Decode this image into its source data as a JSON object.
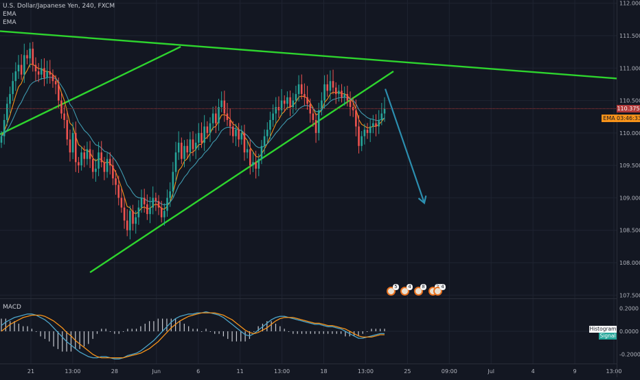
{
  "header": {
    "symbol_line": "U.S. Dollar/Japanese Yen, 240, FXCM",
    "indicators": [
      "EMA",
      "EMA"
    ]
  },
  "macd_panel": {
    "label": "MACD"
  },
  "colors": {
    "background": "#131722",
    "up_candle": "#26a69a",
    "down_candle": "#ef5350",
    "ema_fast": "#f7931a",
    "ema_slow": "#3f9bb0",
    "trendline": "#2ed52e",
    "arrow": "#2c8fb0",
    "macd_line": "#4da5c9",
    "signal_line": "#f7931a",
    "price_line": "#b23b3b"
  },
  "price_axis": {
    "labels": [
      "112.000",
      "111.500",
      "111.000",
      "110.500",
      "110.000",
      "109.500",
      "109.000",
      "108.500",
      "108.000",
      "107.500"
    ],
    "current_price": "110.375",
    "ema_tag_label": "EMA",
    "ema_tag_value": "03:46:33"
  },
  "macd_axis": {
    "labels": [
      "0.2000",
      "0.0000",
      "-0.2000"
    ],
    "histogram_tag": "Histogram",
    "signal_tag": "Signal"
  },
  "time_axis": {
    "labels": [
      "21",
      "13:00",
      "28",
      "Jun",
      "6",
      "11",
      "13:00",
      "18",
      "13:00",
      "25",
      "09:00",
      "Jul",
      "4",
      "9",
      "13:00"
    ]
  },
  "events": [
    "5",
    "4",
    "8",
    "23",
    "4"
  ],
  "chart_data": {
    "type": "candlestick",
    "title": "U.S. Dollar/Japanese Yen, 240, FXCM",
    "ylim": [
      107.45,
      112.05
    ],
    "macd_ylim": [
      -0.28,
      0.28
    ],
    "last_price": 110.375,
    "trendlines": [
      {
        "name": "upper",
        "x1": 0,
        "y1": 111.57,
        "x2": 1,
        "y2": 110.84
      },
      {
        "name": "channel-top",
        "x1": 0,
        "y1": 109.98,
        "x2": 0.293,
        "y2": 111.33
      },
      {
        "name": "channel-bottom",
        "x1": 0.146,
        "y1": 107.85,
        "x2": 0.638,
        "y2": 110.95
      }
    ],
    "projection": {
      "from": [
        0.602,
        110.68
      ],
      "to": [
        0.663,
        108.92
      ]
    },
    "closes": [
      109.95,
      110.2,
      110.45,
      110.6,
      110.8,
      110.95,
      111.05,
      110.9,
      111.2,
      111.15,
      111.3,
      111.05,
      110.95,
      110.9,
      111.0,
      110.85,
      110.95,
      110.9,
      110.8,
      110.75,
      110.5,
      110.3,
      110.2,
      109.9,
      109.7,
      110.0,
      109.55,
      109.5,
      109.7,
      109.6,
      109.75,
      109.6,
      109.4,
      109.45,
      109.7,
      109.55,
      109.4,
      109.6,
      109.5,
      109.3,
      109.2,
      109.0,
      108.85,
      108.65,
      108.5,
      108.8,
      108.6,
      108.7,
      108.85,
      109.0,
      108.9,
      108.75,
      108.85,
      109.0,
      108.95,
      108.85,
      108.7,
      108.8,
      109.0,
      109.1,
      109.4,
      109.7,
      109.85,
      109.6,
      109.8,
      109.7,
      109.9,
      109.75,
      109.85,
      110.0,
      109.85,
      110.1,
      110.0,
      110.15,
      110.3,
      110.15,
      110.4,
      110.5,
      110.3,
      110.2,
      110.1,
      109.95,
      110.05,
      109.9,
      110.0,
      109.7,
      109.75,
      109.5,
      109.55,
      109.45,
      109.6,
      109.8,
      109.95,
      110.05,
      110.2,
      110.3,
      110.4,
      110.35,
      110.5,
      110.45,
      110.55,
      110.4,
      110.5,
      110.6,
      110.75,
      110.6,
      110.55,
      110.45,
      110.3,
      110.2,
      110.0,
      110.35,
      110.5,
      110.75,
      110.65,
      110.8,
      110.7,
      110.6,
      110.65,
      110.55,
      110.6,
      110.5,
      110.4,
      110.35,
      110.1,
      109.8,
      109.95,
      110.05,
      110.0,
      110.1,
      110.15,
      110.1,
      110.2,
      110.3,
      110.375
    ],
    "macd": [
      0.05,
      0.08,
      0.1,
      0.12,
      0.13,
      0.14,
      0.15,
      0.15,
      0.14,
      0.12,
      0.1,
      0.07,
      0.03,
      -0.01,
      -0.05,
      -0.09,
      -0.12,
      -0.15,
      -0.18,
      -0.2,
      -0.22,
      -0.23,
      -0.23,
      -0.22,
      -0.22,
      -0.23,
      -0.24,
      -0.24,
      -0.23,
      -0.21,
      -0.2,
      -0.19,
      -0.17,
      -0.14,
      -0.11,
      -0.08,
      -0.04,
      0.0,
      0.04,
      0.08,
      0.11,
      0.13,
      0.14,
      0.15,
      0.15,
      0.16,
      0.16,
      0.17,
      0.16,
      0.15,
      0.14,
      0.12,
      0.09,
      0.06,
      0.03,
      0.0,
      -0.03,
      -0.04,
      -0.02,
      0.01,
      0.04,
      0.07,
      0.1,
      0.12,
      0.13,
      0.13,
      0.12,
      0.11,
      0.1,
      0.09,
      0.08,
      0.07,
      0.06,
      0.06,
      0.05,
      0.04,
      0.04,
      0.03,
      0.02,
      0.0,
      -0.02,
      -0.04,
      -0.06,
      -0.06,
      -0.05,
      -0.04,
      -0.03,
      -0.02,
      -0.02
    ],
    "signal": [
      0.0,
      0.03,
      0.06,
      0.08,
      0.1,
      0.12,
      0.13,
      0.14,
      0.14,
      0.14,
      0.13,
      0.11,
      0.09,
      0.06,
      0.03,
      -0.01,
      -0.04,
      -0.08,
      -0.11,
      -0.14,
      -0.17,
      -0.2,
      -0.22,
      -0.23,
      -0.23,
      -0.23,
      -0.23,
      -0.23,
      -0.23,
      -0.22,
      -0.21,
      -0.2,
      -0.19,
      -0.17,
      -0.15,
      -0.12,
      -0.09,
      -0.05,
      -0.01,
      0.03,
      0.06,
      0.09,
      0.11,
      0.13,
      0.14,
      0.15,
      0.16,
      0.16,
      0.16,
      0.16,
      0.15,
      0.14,
      0.12,
      0.1,
      0.07,
      0.04,
      0.01,
      -0.01,
      -0.02,
      -0.01,
      0.01,
      0.03,
      0.06,
      0.09,
      0.11,
      0.12,
      0.12,
      0.12,
      0.11,
      0.1,
      0.09,
      0.08,
      0.07,
      0.07,
      0.06,
      0.05,
      0.05,
      0.04,
      0.03,
      0.02,
      0.0,
      -0.02,
      -0.04,
      -0.05,
      -0.05,
      -0.05,
      -0.04,
      -0.03,
      -0.03
    ]
  }
}
